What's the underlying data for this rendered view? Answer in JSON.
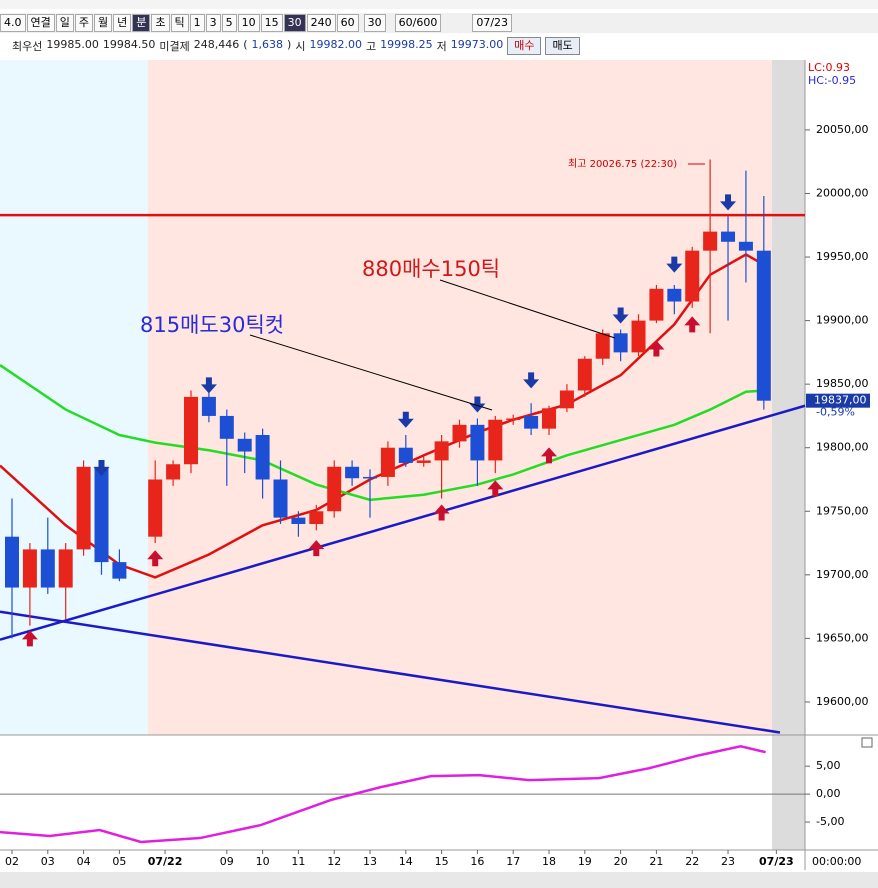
{
  "toolbar": {
    "buttons": [
      "4.0",
      "연결",
      "일",
      "주",
      "월",
      "년",
      "분",
      "초",
      "틱",
      "1",
      "3",
      "5",
      "10",
      "15",
      "30",
      "240",
      "60"
    ],
    "active": [
      "분",
      "30"
    ],
    "period": "30",
    "count": "60/600",
    "date": "07/23"
  },
  "quote": {
    "items": [
      "최우선",
      "19985.00",
      "19984.50",
      "미결제",
      "248,446",
      "(",
      "1,638",
      ")",
      "시",
      "19982.00",
      "고",
      "19998.25",
      "저",
      "19973.00"
    ],
    "buy": "매수",
    "sell": "매도"
  },
  "chart_data": {
    "type": "candlestick",
    "xlim": [
      -0.67,
      44.3
    ],
    "ylim": [
      19574,
      20105
    ],
    "xticks": [
      {
        "value": 0,
        "label": "02"
      },
      {
        "value": 2,
        "label": "03"
      },
      {
        "value": 4,
        "label": "04"
      },
      {
        "value": 6,
        "label": "05"
      },
      {
        "value": 8.55,
        "label": "07/22"
      },
      {
        "value": 12,
        "label": "09"
      },
      {
        "value": 14,
        "label": "10"
      },
      {
        "value": 16,
        "label": "11"
      },
      {
        "value": 18,
        "label": "12"
      },
      {
        "value": 20,
        "label": "13"
      },
      {
        "value": 22,
        "label": "14"
      },
      {
        "value": 24,
        "label": "15"
      },
      {
        "value": 26,
        "label": "16"
      },
      {
        "value": 28,
        "label": "17"
      },
      {
        "value": 30,
        "label": "18"
      },
      {
        "value": 32,
        "label": "19"
      },
      {
        "value": 34,
        "label": "20"
      },
      {
        "value": 36,
        "label": "21"
      },
      {
        "value": 38,
        "label": "22"
      },
      {
        "value": 40,
        "label": "23"
      },
      {
        "value": 42.7,
        "label": "07/23"
      }
    ],
    "yticks": [
      {
        "value": 19600,
        "label": "19600,00"
      },
      {
        "value": 19650,
        "label": "19650,00"
      },
      {
        "value": 19700,
        "label": "19700,00"
      },
      {
        "value": 19750,
        "label": "19750,00"
      },
      {
        "value": 19800,
        "label": "19800,00"
      },
      {
        "value": 19850,
        "label": "19850,00"
      },
      {
        "value": 19900,
        "label": "19900,00"
      },
      {
        "value": 19950,
        "label": "19950,00"
      },
      {
        "value": 20000,
        "label": "20000,00"
      },
      {
        "value": 20050,
        "label": "20050,00"
      }
    ],
    "corner_labels": [
      "LC:0.93",
      "HC:-0.95"
    ],
    "up_color": "#e8251b",
    "down_color": "#1d4fd4",
    "candles": {
      "x": [
        0,
        1,
        2,
        3,
        4,
        5,
        6,
        8,
        9,
        10,
        11,
        12,
        13,
        14,
        15,
        16,
        17,
        18,
        19,
        20,
        21,
        22,
        23,
        24,
        25,
        26,
        27,
        28,
        29,
        30,
        31,
        32,
        33,
        34,
        35,
        36,
        37,
        38,
        39,
        40,
        41,
        42
      ],
      "open": [
        19730,
        19690,
        19720,
        19690,
        19720,
        19785,
        19710,
        19730,
        19775,
        19787,
        19840,
        19825,
        19807,
        19810,
        19775,
        19745,
        19740,
        19750,
        19785,
        19777,
        19777,
        19800,
        19788,
        19790,
        19805,
        19818,
        19790,
        19822,
        19825,
        19815,
        19831,
        19845,
        19870,
        19890,
        19875,
        19900,
        19925,
        19915,
        19955,
        19970,
        19962,
        19955
      ],
      "high": [
        19760,
        19725,
        19745,
        19725,
        19790,
        19790,
        19720,
        19790,
        19790,
        19845,
        19845,
        19830,
        19812,
        19815,
        19790,
        19750,
        19755,
        19790,
        19790,
        19783,
        19805,
        19810,
        19793,
        19810,
        19822,
        19823,
        19825,
        19826,
        19835,
        19833,
        19850,
        19872,
        19893,
        19893,
        19905,
        19928,
        19928,
        19958,
        20026.75,
        19982,
        20018,
        19998
      ],
      "low": [
        19650,
        19660,
        19685,
        19665,
        19715,
        19700,
        19695,
        19725,
        19770,
        19780,
        19820,
        19770,
        19780,
        19760,
        19740,
        19730,
        19735,
        19745,
        19770,
        19745,
        19770,
        19785,
        19785,
        19760,
        19800,
        19770,
        19780,
        19818,
        19810,
        19810,
        19828,
        19840,
        19865,
        19868,
        19872,
        19898,
        19905,
        19910,
        19890,
        19900,
        19930,
        19830
      ],
      "close": [
        19690,
        19720,
        19690,
        19720,
        19785,
        19710,
        19697,
        19775,
        19787,
        19840,
        19825,
        19807,
        19797,
        19775,
        19745,
        19740,
        19750,
        19785,
        19776,
        19776,
        19800,
        19788,
        19790,
        19805,
        19818,
        19790,
        19822,
        19823,
        19815,
        19831,
        19845,
        19870,
        19890,
        19875,
        19900,
        19925,
        19915,
        19955,
        19970,
        19962,
        19955,
        19837
      ]
    },
    "lines": [
      {
        "color": "#e01010",
        "x": [
          -0.67,
          3,
          6,
          8,
          11,
          14,
          17,
          20,
          23,
          26,
          28,
          31,
          34,
          37,
          39,
          41,
          42
        ],
        "values": [
          19786,
          19739,
          19708,
          19698,
          19716,
          19739,
          19751,
          19775,
          19794,
          19812,
          19822,
          19834,
          19857,
          19897,
          19936,
          19952,
          19944
        ]
      },
      {
        "color": "#22dd22",
        "x": [
          -0.67,
          3,
          6,
          8,
          11,
          14,
          17,
          20,
          23,
          26,
          28,
          31,
          34,
          37,
          39,
          41,
          42
        ],
        "values": [
          19865,
          19830,
          19810,
          19804,
          19798,
          19790,
          19771,
          19759,
          19763,
          19771,
          19779,
          19794,
          19806,
          19818,
          19830,
          19844,
          19845
        ]
      },
      {
        "color": "#1a1ac8",
        "x": [
          -0.67,
          44.3
        ],
        "values": [
          19649,
          19833
        ]
      },
      {
        "color": "#1a1ac8",
        "x": [
          -0.67,
          42.9
        ],
        "values": [
          19671,
          19576
        ]
      }
    ],
    "hline": {
      "value": 19983,
      "color": "#e01010"
    },
    "sell_signals": {
      "color": "#1a3aa8",
      "x": [
        5,
        11,
        22,
        26,
        29,
        34,
        37,
        40
      ],
      "values": [
        19784,
        19849,
        19822,
        19834,
        19853,
        19904,
        19944,
        19993
      ]
    },
    "buy_signals": {
      "color": "#c8102e",
      "x": [
        1,
        8,
        17,
        24,
        27,
        30,
        36,
        38
      ],
      "values": [
        19650,
        19713,
        19721,
        19749,
        19768,
        19794,
        19878,
        19897
      ]
    },
    "annotations": [
      "815매도30틱컷",
      "880매수150틱",
      "최고 20026.75 (22:30)"
    ],
    "last_label": "19837,00",
    "change_label": "-0,59%",
    "indicator": {
      "ylim": [
        -10,
        10.4
      ],
      "yticks": [
        {
          "value": 5,
          "label": "5,00"
        },
        {
          "value": 0,
          "label": "0,00"
        },
        {
          "value": -5,
          "label": "-5,00"
        }
      ],
      "color": "#e020e0",
      "x": [
        -0.67,
        2.1,
        4.9,
        7.2,
        10.5,
        13.9,
        17.8,
        20.6,
        23.4,
        26.1,
        28.9,
        32.8,
        35.6,
        38.4,
        40.7,
        42.1
      ],
      "values": [
        -6.79,
        -7.5,
        -6.43,
        -8.57,
        -7.86,
        -5.54,
        -1.07,
        1.25,
        3.21,
        3.39,
        2.5,
        2.86,
        4.64,
        6.96,
        8.57,
        7.5
      ]
    },
    "time_label": "00:00:00"
  }
}
